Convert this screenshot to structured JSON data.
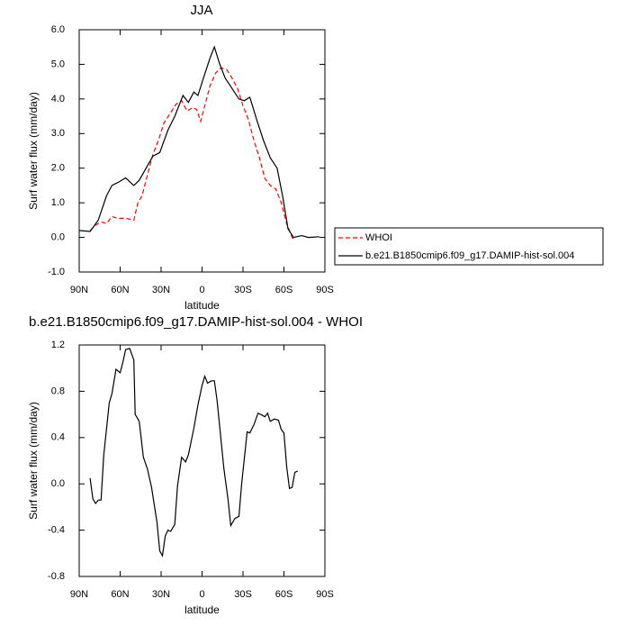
{
  "chart_data": [
    {
      "type": "line",
      "title": "JJA",
      "ylabel": "Surf water flux (mm/day)",
      "xlabel": "latitude",
      "xlim": [
        90,
        -90
      ],
      "xticks": [
        {
          "value": 90,
          "label": "90N"
        },
        {
          "value": 60,
          "label": "60N"
        },
        {
          "value": 30,
          "label": "30N"
        },
        {
          "value": 0,
          "label": "0"
        },
        {
          "value": -30,
          "label": "30S"
        },
        {
          "value": -60,
          "label": "60S"
        },
        {
          "value": -90,
          "label": "90S"
        }
      ],
      "ylim": [
        -1.0,
        6.0
      ],
      "yticks": [
        {
          "value": -1,
          "label": "-1.0"
        },
        {
          "value": 0,
          "label": "0.0"
        },
        {
          "value": 1,
          "label": "1.0"
        },
        {
          "value": 2,
          "label": "2.0"
        },
        {
          "value": 3,
          "label": "3.0"
        },
        {
          "value": 4,
          "label": "4.0"
        },
        {
          "value": 5,
          "label": "5.0"
        },
        {
          "value": 6,
          "label": "6.0"
        }
      ],
      "legend": "right",
      "series": [
        {
          "name": "WHOI",
          "color": "#ff0000",
          "dash": true,
          "x": [
            82,
            78,
            74,
            70,
            66,
            62,
            56,
            50,
            47,
            44,
            40,
            36,
            32,
            28,
            23,
            19,
            15,
            11,
            7,
            4,
            1,
            -2,
            -6,
            -10,
            -14,
            -18,
            -22,
            -26,
            -30,
            -34,
            -38,
            -42,
            -46,
            -50,
            -54,
            -58,
            -62,
            -66,
            -68
          ],
          "values": [
            0.2,
            0.35,
            0.45,
            0.4,
            0.6,
            0.55,
            0.55,
            0.5,
            1.0,
            1.2,
            1.8,
            2.4,
            2.8,
            3.3,
            3.6,
            3.85,
            3.95,
            3.65,
            3.75,
            3.7,
            3.35,
            3.8,
            4.4,
            4.75,
            4.9,
            4.85,
            4.6,
            4.3,
            3.8,
            3.4,
            2.8,
            2.3,
            1.7,
            1.5,
            1.4,
            1.0,
            0.4,
            0.0,
            -0.1
          ]
        },
        {
          "name": "b.e21.B1850cmip6.f09_g17.DAMIP-hist-sol.004",
          "color": "#000000",
          "dash": false,
          "x": [
            90,
            82,
            76,
            70,
            66,
            61,
            56,
            50,
            46,
            41,
            36,
            31,
            25,
            20,
            14,
            10,
            6,
            3,
            -1,
            -6,
            -9,
            -13,
            -17,
            -22,
            -27,
            -31,
            -35,
            -40,
            -45,
            -50,
            -55,
            -59,
            -63,
            -67,
            -73,
            -78,
            -86
          ],
          "values": [
            0.2,
            0.17,
            0.5,
            1.2,
            1.5,
            1.6,
            1.72,
            1.5,
            1.65,
            2.0,
            2.35,
            2.45,
            3.1,
            3.5,
            4.1,
            3.9,
            4.2,
            4.1,
            4.6,
            5.2,
            5.5,
            5.0,
            4.6,
            4.3,
            4.0,
            3.95,
            4.05,
            3.4,
            2.8,
            2.3,
            2.0,
            1.2,
            0.25,
            0.0,
            0.05,
            0.0,
            0.02
          ]
        }
      ]
    },
    {
      "type": "line",
      "title": "b.e21.B1850cmip6.f09_g17.DAMIP-hist-sol.004 - WHOI",
      "ylabel": "Surf water flux (mm/day)",
      "xlabel": "latitude",
      "xlim": [
        90,
        -90
      ],
      "xticks": [
        {
          "value": 90,
          "label": "90N"
        },
        {
          "value": 60,
          "label": "60N"
        },
        {
          "value": 30,
          "label": "30N"
        },
        {
          "value": 0,
          "label": "0"
        },
        {
          "value": -30,
          "label": "30S"
        },
        {
          "value": -60,
          "label": "60S"
        },
        {
          "value": -90,
          "label": "90S"
        }
      ],
      "ylim": [
        -0.8,
        1.2
      ],
      "yticks": [
        -0.8,
        -0.4,
        {
          "value": 0,
          "label": "0.0"
        },
        0.4,
        0.8,
        1.2
      ],
      "series": [
        {
          "color": "#000000",
          "dash": false,
          "x": [
            82,
            80,
            78,
            76,
            74,
            72,
            68,
            66,
            63,
            60,
            58,
            56,
            53,
            50,
            49,
            46,
            43,
            40,
            37,
            33,
            31,
            29,
            27,
            25,
            23,
            20,
            18,
            15,
            12,
            10,
            6,
            3,
            0,
            -2,
            -4,
            -7,
            -9,
            -11,
            -14,
            -16,
            -19,
            -21,
            -24,
            -27,
            -29,
            -33,
            -35,
            -38,
            -41,
            -43,
            -46,
            -48,
            -50,
            -53,
            -56,
            -58,
            -60,
            -62,
            -64,
            -66,
            -68,
            -70
          ],
          "values": [
            0.05,
            -0.13,
            -0.17,
            -0.14,
            -0.14,
            0.25,
            0.7,
            0.78,
            0.99,
            0.96,
            1.05,
            1.16,
            1.17,
            1.07,
            0.6,
            0.54,
            0.23,
            0.13,
            -0.03,
            -0.33,
            -0.58,
            -0.62,
            -0.45,
            -0.4,
            -0.41,
            -0.35,
            -0.02,
            0.23,
            0.19,
            0.25,
            0.48,
            0.68,
            0.85,
            0.93,
            0.87,
            0.89,
            0.89,
            0.72,
            0.37,
            0.13,
            -0.13,
            -0.36,
            -0.3,
            -0.28,
            0.0,
            0.45,
            0.44,
            0.51,
            0.61,
            0.6,
            0.58,
            0.61,
            0.54,
            0.56,
            0.55,
            0.47,
            0.44,
            0.15,
            -0.04,
            -0.03,
            0.1,
            0.11
          ]
        }
      ]
    }
  ]
}
